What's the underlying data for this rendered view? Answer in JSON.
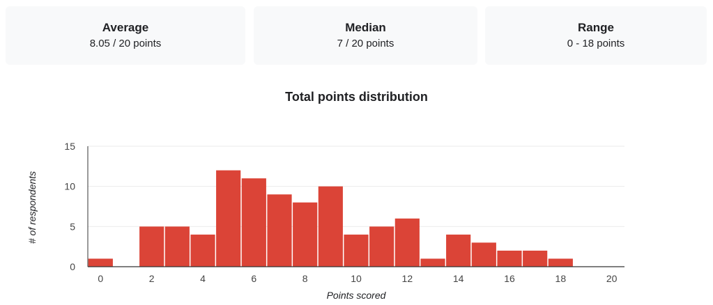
{
  "summary": {
    "average": {
      "title": "Average",
      "value": "8.05 / 20 points"
    },
    "median": {
      "title": "Median",
      "value": "7 / 20 points"
    },
    "range": {
      "title": "Range",
      "value": "0 - 18 points"
    }
  },
  "colors": {
    "bar": "#db4437",
    "grid": "#ebebeb",
    "axis": "#333333",
    "card": "#f8f9fa"
  },
  "chart_data": {
    "type": "bar",
    "title": "Total points distribution",
    "xlabel": "Points scored",
    "ylabel": "# of respondents",
    "categories": [
      0,
      1,
      2,
      3,
      4,
      5,
      6,
      7,
      8,
      9,
      10,
      11,
      12,
      13,
      14,
      15,
      16,
      17,
      18,
      19,
      20
    ],
    "values": [
      1,
      0,
      5,
      5,
      4,
      12,
      11,
      9,
      8,
      10,
      4,
      5,
      6,
      1,
      4,
      3,
      2,
      2,
      1,
      0,
      0
    ],
    "x_ticks": [
      0,
      2,
      4,
      6,
      8,
      10,
      12,
      14,
      16,
      18,
      20
    ],
    "y_ticks": [
      0,
      5,
      10,
      15
    ],
    "ylim": [
      0,
      15
    ],
    "grid": true,
    "legend": "none"
  }
}
